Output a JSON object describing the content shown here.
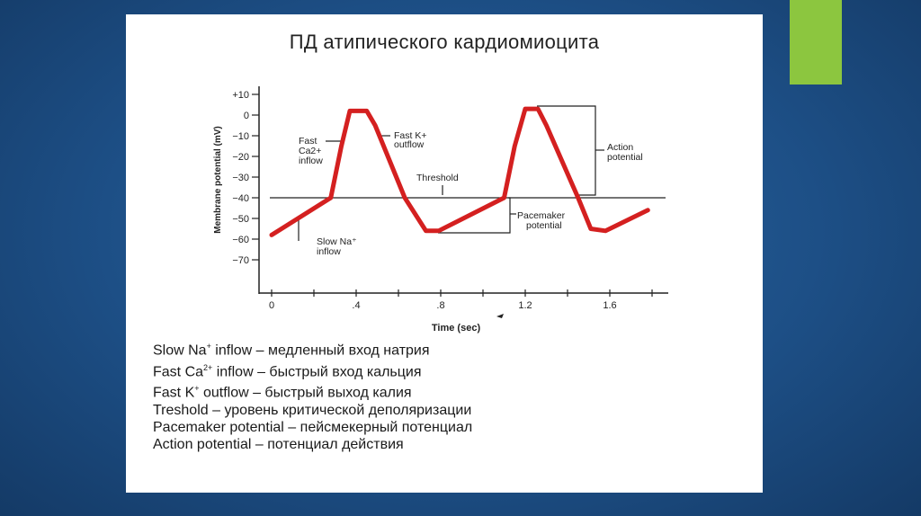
{
  "slide": {
    "title": "ПД атипического  кардиомиоцита",
    "accent_color": "#8cc63f",
    "background_color": "#1d4f86"
  },
  "chart_data": {
    "type": "line",
    "xlabel": "Time (sec)",
    "ylabel": "Membrane potential (mV)",
    "xlim": [
      0,
      1.8
    ],
    "ylim": [
      -80,
      12
    ],
    "x_ticks": [
      0,
      0.2,
      0.4,
      0.6,
      0.8,
      1.0,
      1.2,
      1.4,
      1.6,
      1.8
    ],
    "x_tick_labels": [
      "0",
      "",
      ".4",
      "",
      ".8",
      "",
      "1.2",
      "",
      "1.6",
      ""
    ],
    "y_ticks": [
      10,
      0,
      -10,
      -20,
      -30,
      -40,
      -50,
      -60,
      -70
    ],
    "y_tick_labels": [
      "+10",
      "0",
      "−10",
      "−20",
      "−30",
      "−40",
      "−50",
      "−60",
      "−70"
    ],
    "grid": false,
    "threshold": -40,
    "series": [
      {
        "color": "#d42020",
        "x": [
          0,
          0.28,
          0.33,
          0.37,
          0.45,
          0.49,
          0.63,
          0.73,
          0.79,
          1.1,
          1.15,
          1.2,
          1.26,
          1.3,
          1.45,
          1.51,
          1.58,
          1.78
        ],
        "y": [
          -58,
          -40,
          -15,
          2,
          2,
          -5,
          -40,
          -56,
          -56,
          -40,
          -15,
          3,
          3,
          -5,
          -40,
          -55,
          -56,
          -46
        ]
      }
    ],
    "annotations": {
      "fast_ca": [
        "Fast",
        "Ca2+",
        "inflow"
      ],
      "fast_k": [
        "Fast K+",
        "outflow"
      ],
      "threshold": "Threshold",
      "action_potential": [
        "Action",
        "potential"
      ],
      "pacemaker": [
        "Pacemaker",
        "potential"
      ],
      "slow_na": [
        "Slow Na⁺",
        "inflow"
      ]
    }
  },
  "legend": [
    {
      "term": "Slow Na",
      "sup": "+",
      "rest": " inflow – медленный вход натрия"
    },
    {
      "term": "Fast Ca",
      "sup": "2+",
      "rest": " inflow – быстрый вход кальция"
    },
    {
      "term": "Fast K",
      "sup": "+",
      "rest": " outflow – быстрый выход калия"
    },
    {
      "term": "Treshold",
      "sup": "",
      "rest": " – уровень критической деполяризации"
    },
    {
      "term": "Pacemaker potential",
      "sup": "",
      "rest": " – пейсмекерный потенциал"
    },
    {
      "term": "Action potential",
      "sup": "",
      "rest": " – потенциал действия"
    }
  ]
}
